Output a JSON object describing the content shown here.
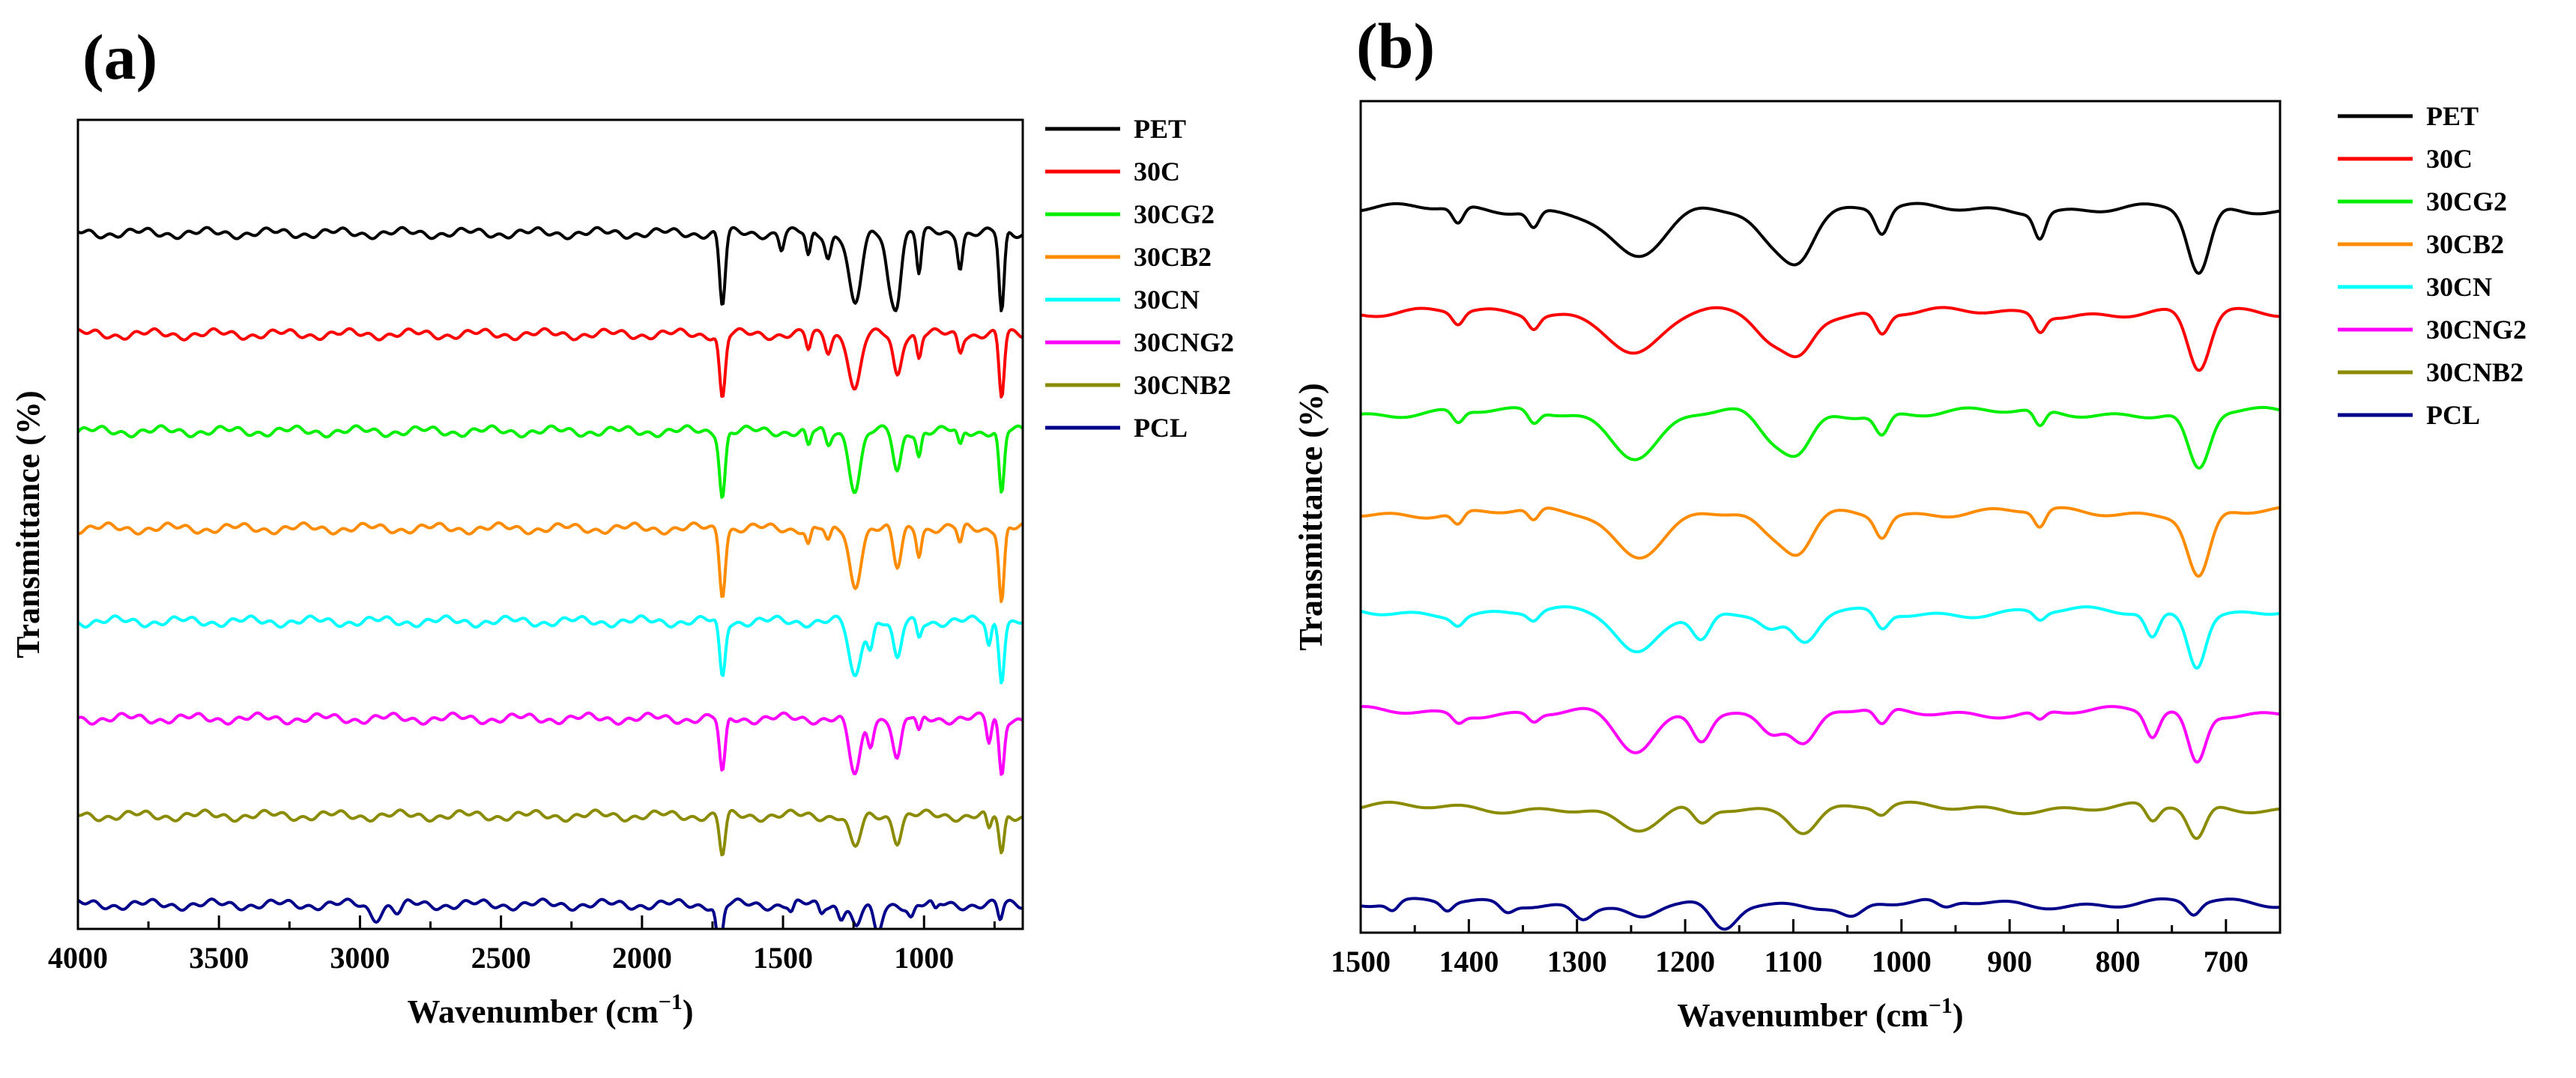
{
  "chart_data": [
    {
      "type": "line",
      "panel_label": "(a)",
      "xlabel": "Wavenumber (cm",
      "xlabel_sup": "−1",
      "xlabel_close": ")",
      "ylabel": "Transmittance (%)",
      "xlim": [
        4000,
        650
      ],
      "x_reversed": true,
      "xticks": [
        4000,
        3500,
        3000,
        2500,
        2000,
        1500,
        1000
      ],
      "yticks": [],
      "legend_position": "right",
      "grid": false,
      "series": [
        {
          "name": "PET",
          "color": "#000000",
          "baseline": 0.86,
          "bands": [
            [
              1715,
              0.09,
              10
            ],
            [
              1505,
              0.02,
              8
            ],
            [
              1410,
              0.03,
              8
            ],
            [
              1340,
              0.03,
              10
            ],
            [
              1245,
              0.09,
              22
            ],
            [
              1120,
              0.06,
              15
            ],
            [
              1095,
              0.07,
              14
            ],
            [
              1018,
              0.05,
              8
            ],
            [
              872,
              0.04,
              8
            ],
            [
              725,
              0.1,
              9
            ]
          ]
        },
        {
          "name": "30C",
          "color": "#ff0000",
          "baseline": 0.735,
          "bands": [
            [
              1715,
              0.08,
              10
            ],
            [
              1410,
              0.02,
              8
            ],
            [
              1340,
              0.02,
              10
            ],
            [
              1245,
              0.07,
              20
            ],
            [
              1095,
              0.05,
              14
            ],
            [
              1018,
              0.03,
              8
            ],
            [
              872,
              0.02,
              8
            ],
            [
              725,
              0.08,
              9
            ]
          ]
        },
        {
          "name": "30CG2",
          "color": "#00ee00",
          "baseline": 0.615,
          "bands": [
            [
              1715,
              0.08,
              10
            ],
            [
              1410,
              0.02,
              8
            ],
            [
              1340,
              0.02,
              10
            ],
            [
              1245,
              0.07,
              20
            ],
            [
              1095,
              0.05,
              14
            ],
            [
              1018,
              0.03,
              8
            ],
            [
              872,
              0.02,
              8
            ],
            [
              725,
              0.08,
              9
            ]
          ]
        },
        {
          "name": "30CB2",
          "color": "#ff8c00",
          "baseline": 0.495,
          "bands": [
            [
              1715,
              0.08,
              10
            ],
            [
              1410,
              0.02,
              8
            ],
            [
              1340,
              0.02,
              10
            ],
            [
              1245,
              0.07,
              20
            ],
            [
              1095,
              0.05,
              14
            ],
            [
              1018,
              0.03,
              8
            ],
            [
              872,
              0.02,
              8
            ],
            [
              725,
              0.09,
              9
            ]
          ]
        },
        {
          "name": "30CN",
          "color": "#00ffff",
          "baseline": 0.38,
          "bands": [
            [
              1715,
              0.07,
              10
            ],
            [
              1245,
              0.07,
              20
            ],
            [
              1190,
              0.03,
              10
            ],
            [
              1095,
              0.05,
              14
            ],
            [
              1018,
              0.02,
              8
            ],
            [
              770,
              0.03,
              8
            ],
            [
              725,
              0.07,
              9
            ]
          ]
        },
        {
          "name": "30CNG2",
          "color": "#ff00ff",
          "baseline": 0.26,
          "bands": [
            [
              1715,
              0.07,
              10
            ],
            [
              1245,
              0.07,
              20
            ],
            [
              1190,
              0.03,
              10
            ],
            [
              1095,
              0.05,
              14
            ],
            [
              1018,
              0.02,
              8
            ],
            [
              770,
              0.03,
              8
            ],
            [
              725,
              0.07,
              9
            ]
          ]
        },
        {
          "name": "30CNB2",
          "color": "#8b8b00",
          "baseline": 0.14,
          "bands": [
            [
              1715,
              0.05,
              10
            ],
            [
              1245,
              0.04,
              20
            ],
            [
              1095,
              0.03,
              14
            ],
            [
              770,
              0.02,
              8
            ],
            [
              725,
              0.05,
              9
            ]
          ]
        },
        {
          "name": "PCL",
          "color": "#00008b",
          "baseline": 0.03,
          "bands": [
            [
              2945,
              0.015,
              20
            ],
            [
              2865,
              0.01,
              15
            ],
            [
              1725,
              0.06,
              10
            ],
            [
              1470,
              0.01,
              8
            ],
            [
              1365,
              0.01,
              8
            ],
            [
              1295,
              0.015,
              10
            ],
            [
              1240,
              0.03,
              15
            ],
            [
              1165,
              0.04,
              14
            ],
            [
              1045,
              0.015,
              10
            ],
            [
              960,
              0.01,
              8
            ],
            [
              730,
              0.02,
              8
            ]
          ]
        }
      ]
    },
    {
      "type": "line",
      "panel_label": "(b)",
      "xlabel": "Wavenumber (cm",
      "xlabel_sup": "−1",
      "xlabel_close": ")",
      "ylabel": "Transmittance (%)",
      "xlim": [
        1500,
        650
      ],
      "x_reversed": true,
      "xticks": [
        1500,
        1400,
        1300,
        1200,
        1100,
        1000,
        900,
        800,
        700
      ],
      "yticks": [],
      "legend_position": "right",
      "grid": false,
      "series": [
        {
          "name": "PET",
          "color": "#000000",
          "baseline": 0.87,
          "bands": [
            [
              1410,
              0.02,
              5
            ],
            [
              1340,
              0.02,
              5
            ],
            [
              1245,
              0.06,
              25
            ],
            [
              1120,
              0.035,
              15
            ],
            [
              1095,
              0.05,
              14
            ],
            [
              1018,
              0.03,
              6
            ],
            [
              872,
              0.03,
              5
            ],
            [
              725,
              0.08,
              10
            ]
          ]
        },
        {
          "name": "30C",
          "color": "#ff0000",
          "baseline": 0.745,
          "bands": [
            [
              1410,
              0.015,
              5
            ],
            [
              1340,
              0.015,
              5
            ],
            [
              1245,
              0.05,
              22
            ],
            [
              1120,
              0.03,
              14
            ],
            [
              1095,
              0.045,
              13
            ],
            [
              1018,
              0.025,
              6
            ],
            [
              872,
              0.02,
              5
            ],
            [
              725,
              0.07,
              10
            ]
          ]
        },
        {
          "name": "30CG2",
          "color": "#00ee00",
          "baseline": 0.625,
          "bands": [
            [
              1410,
              0.015,
              5
            ],
            [
              1340,
              0.015,
              5
            ],
            [
              1245,
              0.05,
              22
            ],
            [
              1120,
              0.03,
              14
            ],
            [
              1095,
              0.045,
              13
            ],
            [
              1018,
              0.025,
              6
            ],
            [
              872,
              0.02,
              5
            ],
            [
              725,
              0.07,
              10
            ]
          ]
        },
        {
          "name": "30CB2",
          "color": "#ff8c00",
          "baseline": 0.505,
          "bands": [
            [
              1410,
              0.015,
              5
            ],
            [
              1340,
              0.015,
              5
            ],
            [
              1245,
              0.05,
              22
            ],
            [
              1120,
              0.03,
              14
            ],
            [
              1095,
              0.045,
              13
            ],
            [
              1018,
              0.025,
              6
            ],
            [
              872,
              0.02,
              5
            ],
            [
              725,
              0.075,
              10
            ]
          ]
        },
        {
          "name": "30CN",
          "color": "#00ffff",
          "baseline": 0.385,
          "bands": [
            [
              1410,
              0.01,
              5
            ],
            [
              1340,
              0.01,
              5
            ],
            [
              1245,
              0.05,
              18
            ],
            [
              1185,
              0.03,
              8
            ],
            [
              1120,
              0.02,
              10
            ],
            [
              1090,
              0.04,
              12
            ],
            [
              1018,
              0.02,
              6
            ],
            [
              872,
              0.01,
              5
            ],
            [
              768,
              0.03,
              6
            ],
            [
              727,
              0.06,
              8
            ]
          ]
        },
        {
          "name": "30CNG2",
          "color": "#ff00ff",
          "baseline": 0.265,
          "bands": [
            [
              1410,
              0.01,
              5
            ],
            [
              1340,
              0.01,
              5
            ],
            [
              1245,
              0.05,
              18
            ],
            [
              1185,
              0.03,
              8
            ],
            [
              1120,
              0.02,
              10
            ],
            [
              1090,
              0.04,
              12
            ],
            [
              1018,
              0.02,
              6
            ],
            [
              872,
              0.01,
              5
            ],
            [
              768,
              0.03,
              6
            ],
            [
              727,
              0.06,
              8
            ]
          ]
        },
        {
          "name": "30CNB2",
          "color": "#8b8b00",
          "baseline": 0.15,
          "bands": [
            [
              1245,
              0.03,
              20
            ],
            [
              1185,
              0.02,
              8
            ],
            [
              1090,
              0.025,
              12
            ],
            [
              1018,
              0.01,
              6
            ],
            [
              768,
              0.02,
              6
            ],
            [
              727,
              0.04,
              8
            ]
          ]
        },
        {
          "name": "PCL",
          "color": "#00008b",
          "baseline": 0.035,
          "bands": [
            [
              1470,
              0.01,
              5
            ],
            [
              1420,
              0.01,
              5
            ],
            [
              1365,
              0.01,
              6
            ],
            [
              1295,
              0.015,
              8
            ],
            [
              1240,
              0.02,
              14
            ],
            [
              1165,
              0.035,
              12
            ],
            [
              1045,
              0.015,
              10
            ],
            [
              960,
              0.01,
              8
            ],
            [
              730,
              0.015,
              6
            ]
          ]
        }
      ]
    }
  ]
}
